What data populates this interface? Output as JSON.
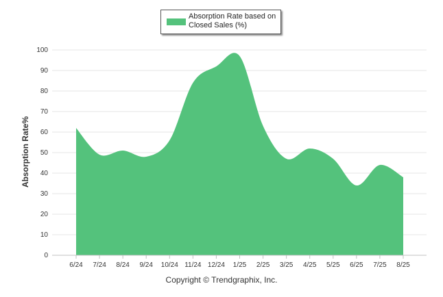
{
  "legend": {
    "label": "Absorption Rate based on Closed Sales (%)",
    "color": "#54c27c"
  },
  "footer": {
    "copyright": "Copyright © Trendgraphix, Inc."
  },
  "chart_data": {
    "type": "area",
    "ylabel": "Absorption Rate%",
    "categories": [
      "6/24",
      "7/24",
      "8/24",
      "9/24",
      "10/24",
      "11/24",
      "12/24",
      "1/25",
      "2/25",
      "3/25",
      "4/25",
      "5/25",
      "6/25",
      "7/25",
      "8/25"
    ],
    "series": [
      {
        "name": "Absorption Rate based on Closed Sales (%)",
        "values": [
          62,
          49,
          51,
          48,
          56,
          84,
          92,
          97,
          63,
          47,
          52,
          47,
          34,
          44,
          38
        ],
        "color": "#54c27c"
      }
    ],
    "ylim": [
      0,
      100
    ],
    "yticks": [
      0,
      10,
      20,
      30,
      40,
      50,
      60,
      70,
      80,
      90,
      100
    ],
    "grid": true,
    "legend_position": "top-center"
  }
}
